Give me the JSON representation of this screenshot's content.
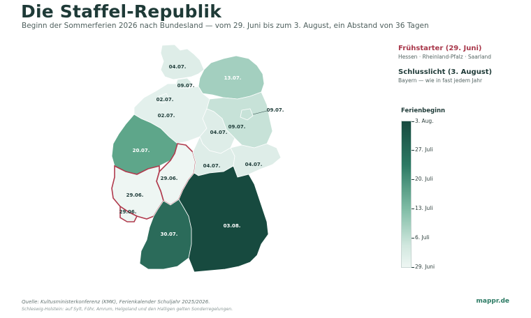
{
  "header": {
    "title": "Die Staffel-Republik",
    "subtitle": "Beginn der Sommerferien 2026 nach Bundesland — vom 29. Juni bis zum 3. August, ein Abstand von 36 Tagen"
  },
  "callouts": {
    "early": {
      "title": "Frühstarter (29. Juni)",
      "text": "Hessen · Rheinland-Pfalz · Saarland",
      "color": "#a8374a"
    },
    "late": {
      "title": "Schlusslicht (3. August)",
      "text": "Bayern — wie in fast jedem Jahr"
    }
  },
  "legend": {
    "title": "Ferienbeginn",
    "labels": [
      "3. Aug.",
      "27. Juli",
      "20. Juli",
      "13. Juli",
      "6. Juli",
      "29. Juni"
    ]
  },
  "map": {
    "colors": {
      "highlight_border": "#b03a4d",
      "darkest": "#174a3f",
      "lightest": "#eef6f3"
    },
    "states": [
      {
        "name": "Schleswig-Holstein",
        "label": "04.07.",
        "color": "#deede8"
      },
      {
        "name": "Hamburg",
        "label": "09.07.",
        "color": "#d9ebe5"
      },
      {
        "name": "Mecklenburg-Vorpommern",
        "label": "13.07.",
        "color": "#a3cfbf"
      },
      {
        "name": "Bremen",
        "label": "02.07.",
        "color": "#e3f0ec"
      },
      {
        "name": "Niedersachsen",
        "label": "02.07.",
        "color": "#e3f0ec"
      },
      {
        "name": "Berlin",
        "label": "09.07.",
        "color": "#c7e2d8"
      },
      {
        "name": "Brandenburg",
        "label": "09.07.",
        "color": "#c7e2d8"
      },
      {
        "name": "Sachsen-Anhalt",
        "label": "04.07.",
        "color": "#deede8"
      },
      {
        "name": "Nordrhein-Westfalen",
        "label": "20.07.",
        "color": "#5ea68a"
      },
      {
        "name": "Thüringen",
        "label": "04.07.",
        "color": "#deede8"
      },
      {
        "name": "Sachsen",
        "label": "04.07.",
        "color": "#deede8"
      },
      {
        "name": "Hessen",
        "label": "29.06.",
        "color": "#eef6f3"
      },
      {
        "name": "Rheinland-Pfalz",
        "label": "29.06.",
        "color": "#eef6f3"
      },
      {
        "name": "Saarland",
        "label": "29.06.",
        "color": "#eef6f3"
      },
      {
        "name": "Baden-Württemberg",
        "label": "30.07.",
        "color": "#2b6b5a"
      },
      {
        "name": "Bayern",
        "label": "03.08.",
        "color": "#174a3f"
      }
    ]
  },
  "footer": {
    "source": "Quelle: Kultusministerkonferenz (KMK), Ferienkalender Schuljahr 2025/2026.",
    "note": "Schleswig-Holstein: auf Sylt, Föhr, Amrum, Helgoland und den Halligen gelten Sonderregelungen.",
    "brand": "mappr.de"
  }
}
